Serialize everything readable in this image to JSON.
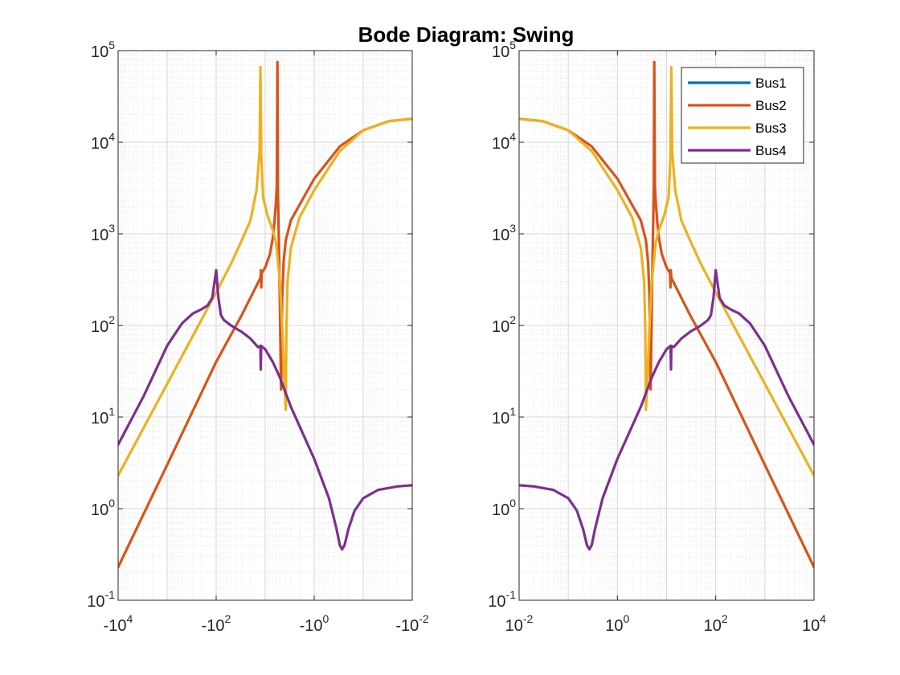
{
  "chart_data": {
    "type": "line",
    "title": "Bode Diagram: Swing",
    "y_scale": "log",
    "ylim": [
      0.1,
      100000
    ],
    "y_ticks": [
      {
        "base": "10",
        "exp": "-1"
      },
      {
        "base": "10",
        "exp": "0"
      },
      {
        "base": "10",
        "exp": "1"
      },
      {
        "base": "10",
        "exp": "2"
      },
      {
        "base": "10",
        "exp": "3"
      },
      {
        "base": "10",
        "exp": "4"
      },
      {
        "base": "10",
        "exp": "5"
      }
    ],
    "grid": true,
    "minor_grid": true,
    "legend": {
      "placement": "top-right of right panel",
      "entries": [
        "Bus1",
        "Bus2",
        "Bus3",
        "Bus4"
      ]
    },
    "colors": {
      "Bus1": "#0072BD",
      "Bus2": "#D95319",
      "Bus3": "#EDB120",
      "Bus4": "#7E2F8E"
    },
    "panels": [
      {
        "id": "left",
        "x_scale": "log (negative frequencies)",
        "xlim": [
          -10000,
          -0.01
        ],
        "x_ticks": [
          {
            "base": "-10",
            "exp": "4"
          },
          {
            "base": "-10",
            "exp": "2"
          },
          {
            "base": "-10",
            "exp": "0"
          },
          {
            "base": "-10",
            "exp": "-2"
          }
        ],
        "series": [
          {
            "name": "Bus2",
            "points": [
              [
                -10000,
                0.23
              ],
              [
                -1000,
                3.0
              ],
              [
                -100,
                40
              ],
              [
                -30,
                130
              ],
              [
                -12.5,
                330
              ],
              [
                -12.2,
                400
              ],
              [
                -12.0,
                260
              ],
              [
                -11.8,
                370
              ],
              [
                -10,
                430
              ],
              [
                -8,
                600
              ],
              [
                -7,
                900
              ],
              [
                -6.5,
                1300
              ],
              [
                -6.0,
                2300
              ],
              [
                -5.8,
                3300
              ],
              [
                -5.62,
                75000
              ],
              [
                -5.5,
                3000
              ],
              [
                -5.2,
                600
              ],
              [
                -5.0,
                150
              ],
              [
                -4.75,
                20
              ],
              [
                -4.7,
                25
              ],
              [
                -4.5,
                200
              ],
              [
                -4.2,
                500
              ],
              [
                -3.8,
                850
              ],
              [
                -3,
                1400
              ],
              [
                -1,
                4000
              ],
              [
                -0.3,
                9000
              ],
              [
                -0.1,
                13500
              ],
              [
                -0.03,
                17000
              ],
              [
                -0.01,
                18000
              ]
            ]
          },
          {
            "name": "Bus3",
            "points": [
              [
                -10000,
                2.3
              ],
              [
                -1000,
                23
              ],
              [
                -100,
                230
              ],
              [
                -50,
                470
              ],
              [
                -30,
                850
              ],
              [
                -20,
                1400
              ],
              [
                -15,
                3000
              ],
              [
                -13,
                8000
              ],
              [
                -12.5,
                66000
              ],
              [
                -12.0,
                7000
              ],
              [
                -11,
                2500
              ],
              [
                -9,
                1600
              ],
              [
                -7,
                1100
              ],
              [
                -6,
                800
              ],
              [
                -5.5,
                500
              ],
              [
                -5,
                300
              ],
              [
                -4.5,
                100
              ],
              [
                -4.0,
                20
              ],
              [
                -3.8,
                12
              ],
              [
                -3.7,
                80
              ],
              [
                -3.5,
                300
              ],
              [
                -3,
                700
              ],
              [
                -2,
                1500
              ],
              [
                -1,
                3000
              ],
              [
                -0.3,
                8000
              ],
              [
                -0.1,
                13500
              ],
              [
                -0.03,
                17000
              ],
              [
                -0.01,
                18000
              ]
            ]
          },
          {
            "name": "Bus4",
            "points": [
              [
                -10000,
                5
              ],
              [
                -3000,
                17
              ],
              [
                -1000,
                60
              ],
              [
                -500,
                105
              ],
              [
                -300,
                135
              ],
              [
                -200,
                150
              ],
              [
                -150,
                165
              ],
              [
                -120,
                200
              ],
              [
                -100,
                400
              ],
              [
                -90,
                200
              ],
              [
                -80,
                130
              ],
              [
                -70,
                115
              ],
              [
                -50,
                100
              ],
              [
                -30,
                85
              ],
              [
                -20,
                72
              ],
              [
                -14,
                58
              ],
              [
                -12.5,
                60
              ],
              [
                -12.3,
                33
              ],
              [
                -12.1,
                60
              ],
              [
                -10,
                55
              ],
              [
                -7,
                40
              ],
              [
                -5,
                27
              ],
              [
                -3,
                13
              ],
              [
                -2,
                8
              ],
              [
                -1,
                3.5
              ],
              [
                -0.5,
                1.3
              ],
              [
                -0.35,
                0.6
              ],
              [
                -0.3,
                0.4
              ],
              [
                -0.27,
                0.36
              ],
              [
                -0.24,
                0.4
              ],
              [
                -0.2,
                0.6
              ],
              [
                -0.15,
                0.95
              ],
              [
                -0.1,
                1.3
              ],
              [
                -0.05,
                1.6
              ],
              [
                -0.02,
                1.75
              ],
              [
                -0.01,
                1.8
              ]
            ]
          }
        ]
      },
      {
        "id": "right",
        "x_scale": "log",
        "xlim": [
          0.01,
          10000
        ],
        "x_ticks": [
          {
            "base": "10",
            "exp": "-2"
          },
          {
            "base": "10",
            "exp": "0"
          },
          {
            "base": "10",
            "exp": "2"
          },
          {
            "base": "10",
            "exp": "4"
          }
        ],
        "series": [
          {
            "name": "Bus2",
            "points": [
              [
                0.01,
                18000
              ],
              [
                0.03,
                17000
              ],
              [
                0.1,
                13500
              ],
              [
                0.3,
                9000
              ],
              [
                1,
                4000
              ],
              [
                3,
                1400
              ],
              [
                3.8,
                850
              ],
              [
                4.2,
                500
              ],
              [
                4.5,
                200
              ],
              [
                4.7,
                25
              ],
              [
                4.75,
                20
              ],
              [
                5.0,
                150
              ],
              [
                5.2,
                600
              ],
              [
                5.5,
                3000
              ],
              [
                5.62,
                75000
              ],
              [
                5.8,
                3300
              ],
              [
                6.0,
                2300
              ],
              [
                6.5,
                1300
              ],
              [
                7,
                900
              ],
              [
                8,
                600
              ],
              [
                10,
                430
              ],
              [
                11.8,
                370
              ],
              [
                12.0,
                260
              ],
              [
                12.2,
                400
              ],
              [
                12.5,
                330
              ],
              [
                30,
                130
              ],
              [
                100,
                40
              ],
              [
                1000,
                3.0
              ],
              [
                10000,
                0.23
              ]
            ]
          },
          {
            "name": "Bus3",
            "points": [
              [
                0.01,
                18000
              ],
              [
                0.03,
                17000
              ],
              [
                0.1,
                13500
              ],
              [
                0.3,
                8000
              ],
              [
                1,
                3000
              ],
              [
                2,
                1500
              ],
              [
                3,
                700
              ],
              [
                3.5,
                300
              ],
              [
                3.7,
                80
              ],
              [
                3.8,
                12
              ],
              [
                4.0,
                20
              ],
              [
                4.5,
                100
              ],
              [
                5,
                300
              ],
              [
                5.5,
                500
              ],
              [
                6,
                800
              ],
              [
                7,
                1100
              ],
              [
                9,
                1600
              ],
              [
                11,
                2500
              ],
              [
                12.0,
                7000
              ],
              [
                12.5,
                66000
              ],
              [
                13,
                8000
              ],
              [
                15,
                3000
              ],
              [
                20,
                1400
              ],
              [
                30,
                850
              ],
              [
                50,
                470
              ],
              [
                100,
                230
              ],
              [
                1000,
                23
              ],
              [
                10000,
                2.3
              ]
            ]
          },
          {
            "name": "Bus4",
            "points": [
              [
                0.01,
                1.8
              ],
              [
                0.02,
                1.75
              ],
              [
                0.05,
                1.6
              ],
              [
                0.1,
                1.3
              ],
              [
                0.15,
                0.95
              ],
              [
                0.2,
                0.6
              ],
              [
                0.24,
                0.4
              ],
              [
                0.27,
                0.36
              ],
              [
                0.3,
                0.4
              ],
              [
                0.35,
                0.6
              ],
              [
                0.5,
                1.3
              ],
              [
                1,
                3.5
              ],
              [
                2,
                8
              ],
              [
                3,
                13
              ],
              [
                5,
                27
              ],
              [
                7,
                40
              ],
              [
                10,
                55
              ],
              [
                12.1,
                60
              ],
              [
                12.3,
                33
              ],
              [
                12.5,
                60
              ],
              [
                14,
                58
              ],
              [
                20,
                72
              ],
              [
                30,
                85
              ],
              [
                50,
                100
              ],
              [
                70,
                115
              ],
              [
                80,
                130
              ],
              [
                90,
                200
              ],
              [
                100,
                400
              ],
              [
                120,
                200
              ],
              [
                150,
                165
              ],
              [
                200,
                150
              ],
              [
                300,
                135
              ],
              [
                500,
                105
              ],
              [
                1000,
                60
              ],
              [
                3000,
                17
              ],
              [
                10000,
                5
              ]
            ]
          }
        ]
      }
    ]
  }
}
